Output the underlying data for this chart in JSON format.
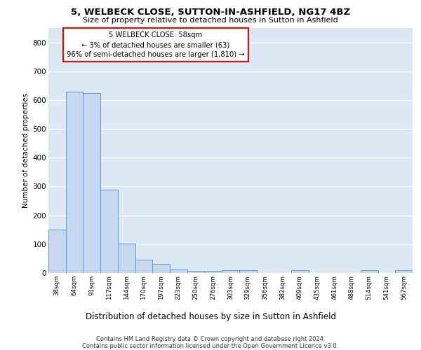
{
  "title_line1": "5, WELBECK CLOSE, SUTTON-IN-ASHFIELD, NG17 4BZ",
  "title_line2": "Size of property relative to detached houses in Sutton in Ashfield",
  "xlabel": "Distribution of detached houses by size in Sutton in Ashfield",
  "ylabel": "Number of detached properties",
  "footer_line1": "Contains HM Land Registry data © Crown copyright and database right 2024.",
  "footer_line2": "Contains public sector information licensed under the Open Government Licence v3.0.",
  "annotation_title": "5 WELBECK CLOSE: 58sqm",
  "annotation_line1": "← 3% of detached houses are smaller (63)",
  "annotation_line2": "96% of semi-detached houses are larger (1,810) →",
  "bar_labels": [
    "38sqm",
    "64sqm",
    "91sqm",
    "117sqm",
    "144sqm",
    "170sqm",
    "197sqm",
    "223sqm",
    "250sqm",
    "276sqm",
    "303sqm",
    "329sqm",
    "356sqm",
    "382sqm",
    "409sqm",
    "435sqm",
    "461sqm",
    "488sqm",
    "514sqm",
    "541sqm",
    "567sqm"
  ],
  "bar_values": [
    150,
    630,
    625,
    290,
    103,
    46,
    32,
    11,
    8,
    8,
    10,
    10,
    0,
    0,
    9,
    0,
    0,
    0,
    9,
    0,
    9
  ],
  "bar_color": "#c5d8ef",
  "bar_edge_color": "#5b9bd5",
  "ylim": [
    0,
    850
  ],
  "yticks": [
    0,
    100,
    200,
    300,
    400,
    500,
    600,
    700,
    800
  ],
  "background_color": "#dce9f5",
  "grid_color": "#ffffff",
  "annotation_box_color": "white",
  "annotation_box_edge": "red"
}
